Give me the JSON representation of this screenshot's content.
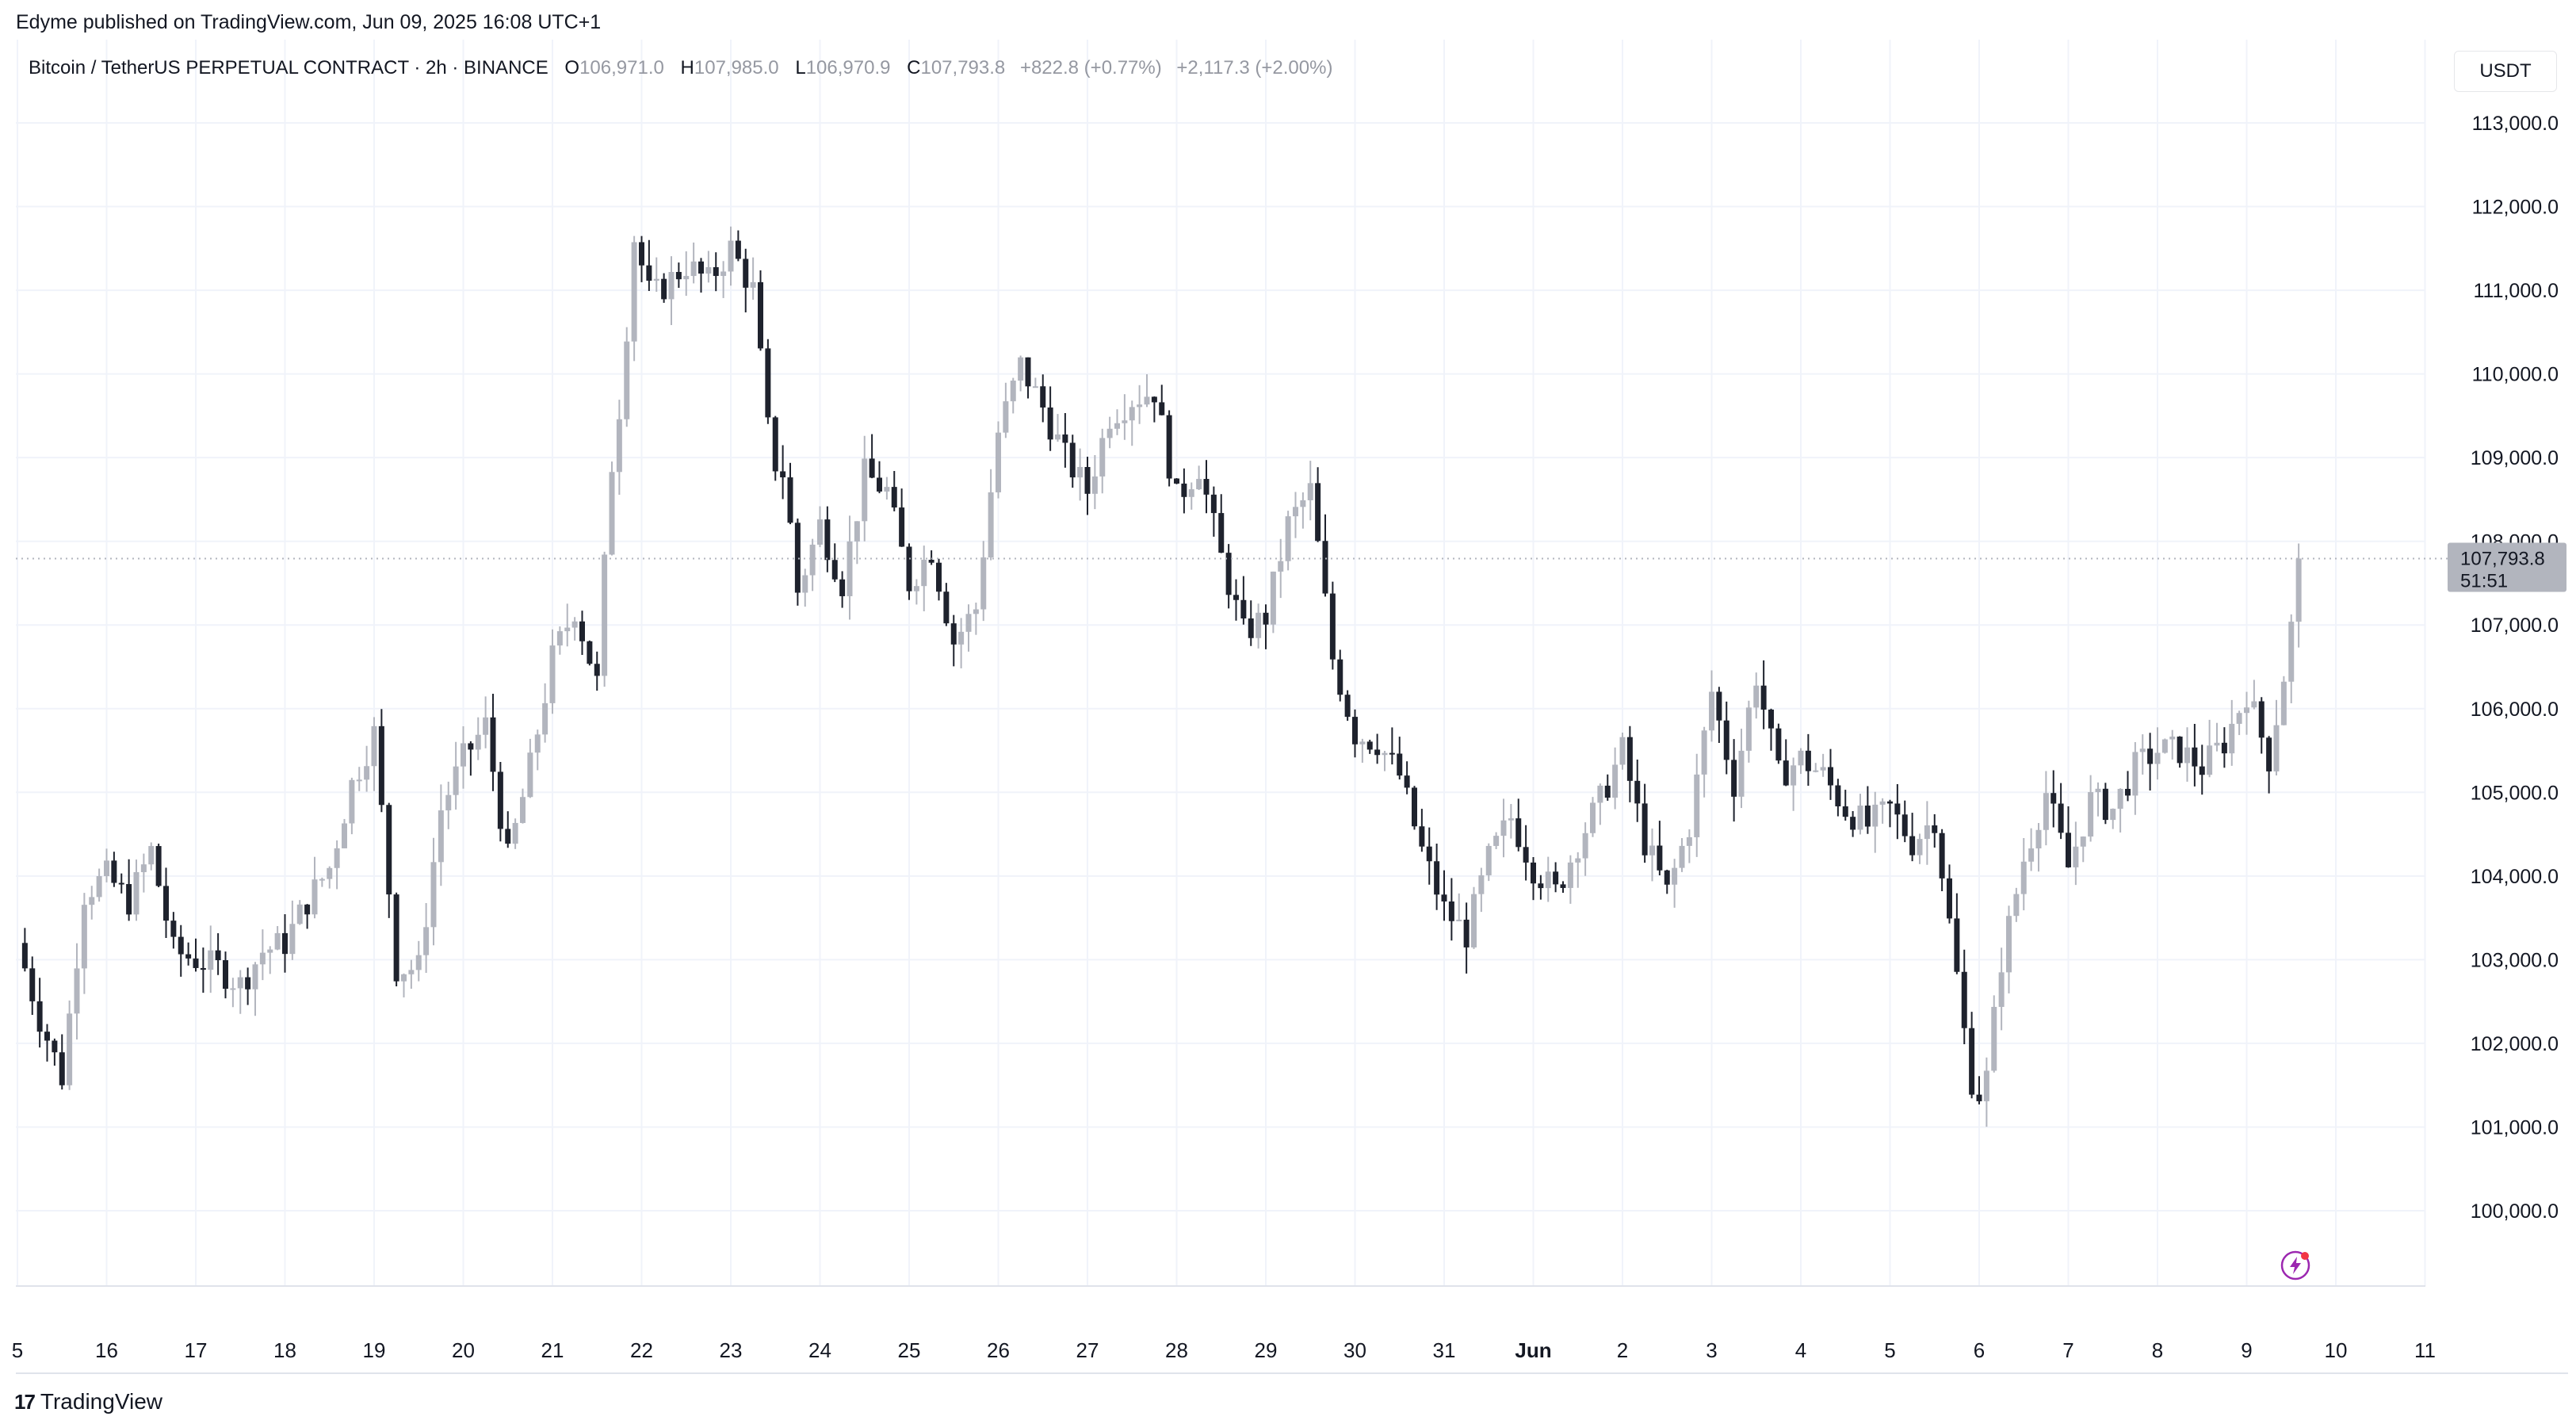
{
  "publisher_line": "Edyme published on TradingView.com, Jun 09, 2025 16:08 UTC+1",
  "legend": {
    "symbol": "Bitcoin / TetherUS PERPETUAL CONTRACT · 2h · BINANCE",
    "o_label": "O",
    "o_value": "106,971.0",
    "h_label": "H",
    "h_value": "107,985.0",
    "l_label": "L",
    "l_value": "106,970.9",
    "c_label": "C",
    "c_value": "107,793.8",
    "change": "+822.8 (+0.77%)",
    "change2": "+2,117.3 (+2.00%)"
  },
  "currency_button": "USDT",
  "footer_brand": "TradingView",
  "price_badge": {
    "price": "107,793.8",
    "countdown": "51:51"
  },
  "colors": {
    "up": "#b2b5be",
    "down": "#1e222d",
    "grid": "#f0f3fa",
    "text": "#131722",
    "muted": "#9598a1",
    "badge": "#b2b5be"
  },
  "chart_data": {
    "type": "candlestick",
    "interval": "2h",
    "y_axis": {
      "ticks": [
        100000,
        101000,
        102000,
        103000,
        104000,
        105000,
        106000,
        107000,
        108000,
        109000,
        110000,
        111000,
        112000,
        113000
      ],
      "tick_labels": [
        "100,000.0",
        "101,000.0",
        "102,000.0",
        "103,000.0",
        "104,000.0",
        "105,000.0",
        "106,000.0",
        "107,000.0",
        "108,000.0",
        "109,000.0",
        "110,000.0",
        "111,000.0",
        "112,000.0",
        "113,000.0"
      ],
      "range": [
        99100,
        113900
      ],
      "position": "right"
    },
    "x_axis": {
      "tick_labels": [
        "5",
        "16",
        "17",
        "18",
        "19",
        "20",
        "21",
        "22",
        "23",
        "24",
        "25",
        "26",
        "27",
        "28",
        "29",
        "30",
        "31",
        "Jun",
        "2",
        "3",
        "4",
        "5",
        "6",
        "7",
        "8",
        "9",
        "10",
        "11"
      ],
      "tick_days": [
        15,
        16,
        17,
        18,
        19,
        20,
        21,
        22,
        23,
        24,
        25,
        26,
        27,
        28,
        29,
        30,
        31,
        32,
        33,
        34,
        35,
        36,
        37,
        38,
        39,
        40,
        41,
        42
      ],
      "range_days": [
        15.0,
        42.0
      ]
    },
    "grid": true,
    "last_price": 107793.8,
    "anchors": [
      [
        15.0,
        103200
      ],
      [
        15.25,
        102300
      ],
      [
        15.5,
        101600
      ],
      [
        15.75,
        103800
      ],
      [
        16.0,
        104000
      ],
      [
        16.25,
        103700
      ],
      [
        16.5,
        104300
      ],
      [
        16.75,
        103100
      ],
      [
        17.0,
        103000
      ],
      [
        17.25,
        102900
      ],
      [
        17.5,
        102700
      ],
      [
        17.75,
        103100
      ],
      [
        18.0,
        103200
      ],
      [
        18.25,
        103700
      ],
      [
        18.5,
        104100
      ],
      [
        18.75,
        105100
      ],
      [
        19.0,
        105700
      ],
      [
        19.25,
        102900
      ],
      [
        19.5,
        102900
      ],
      [
        19.75,
        104800
      ],
      [
        20.0,
        105400
      ],
      [
        20.25,
        105800
      ],
      [
        20.5,
        104200
      ],
      [
        20.75,
        105300
      ],
      [
        21.0,
        106600
      ],
      [
        21.25,
        107200
      ],
      [
        21.5,
        106300
      ],
      [
        21.65,
        108800
      ],
      [
        21.8,
        110000
      ],
      [
        21.9,
        111700
      ],
      [
        22.1,
        110900
      ],
      [
        22.5,
        111300
      ],
      [
        22.75,
        111100
      ],
      [
        23.0,
        111500
      ],
      [
        23.25,
        111000
      ],
      [
        23.45,
        109000
      ],
      [
        23.6,
        108800
      ],
      [
        23.75,
        107400
      ],
      [
        24.0,
        108200
      ],
      [
        24.25,
        107500
      ],
      [
        24.5,
        108800
      ],
      [
        24.75,
        108600
      ],
      [
        25.0,
        107500
      ],
      [
        25.25,
        107900
      ],
      [
        25.5,
        106800
      ],
      [
        25.75,
        107200
      ],
      [
        26.0,
        109300
      ],
      [
        26.25,
        110100
      ],
      [
        26.5,
        109600
      ],
      [
        26.75,
        109000
      ],
      [
        27.0,
        108600
      ],
      [
        27.25,
        109500
      ],
      [
        27.5,
        109700
      ],
      [
        27.75,
        109800
      ],
      [
        28.0,
        108500
      ],
      [
        28.25,
        108900
      ],
      [
        28.5,
        107800
      ],
      [
        28.75,
        106900
      ],
      [
        29.0,
        107100
      ],
      [
        29.25,
        108200
      ],
      [
        29.5,
        108600
      ],
      [
        29.75,
        106600
      ],
      [
        30.0,
        105700
      ],
      [
        30.25,
        105600
      ],
      [
        30.5,
        105200
      ],
      [
        30.75,
        104300
      ],
      [
        31.0,
        103600
      ],
      [
        31.25,
        103300
      ],
      [
        31.5,
        104200
      ],
      [
        31.75,
        104700
      ],
      [
        32.0,
        104100
      ],
      [
        32.25,
        103800
      ],
      [
        32.5,
        104400
      ],
      [
        32.75,
        104900
      ],
      [
        33.0,
        105500
      ],
      [
        33.25,
        104400
      ],
      [
        33.5,
        103800
      ],
      [
        33.75,
        104600
      ],
      [
        34.0,
        106200
      ],
      [
        34.25,
        105100
      ],
      [
        34.5,
        106400
      ],
      [
        34.75,
        105200
      ],
      [
        35.0,
        105400
      ],
      [
        35.25,
        105200
      ],
      [
        35.5,
        104800
      ],
      [
        35.75,
        104600
      ],
      [
        36.0,
        104800
      ],
      [
        36.25,
        104400
      ],
      [
        36.5,
        104700
      ],
      [
        36.75,
        102800
      ],
      [
        36.9,
        101600
      ],
      [
        37.05,
        101300
      ],
      [
        37.25,
        103000
      ],
      [
        37.5,
        104200
      ],
      [
        37.75,
        105000
      ],
      [
        38.0,
        104100
      ],
      [
        38.25,
        104900
      ],
      [
        38.5,
        104800
      ],
      [
        38.75,
        105300
      ],
      [
        39.0,
        105500
      ],
      [
        39.25,
        105500
      ],
      [
        39.5,
        105300
      ],
      [
        39.75,
        105600
      ],
      [
        40.0,
        106200
      ],
      [
        40.25,
        105400
      ],
      [
        40.45,
        106600
      ],
      [
        40.5,
        106971
      ],
      [
        40.62,
        107793.8
      ]
    ]
  }
}
